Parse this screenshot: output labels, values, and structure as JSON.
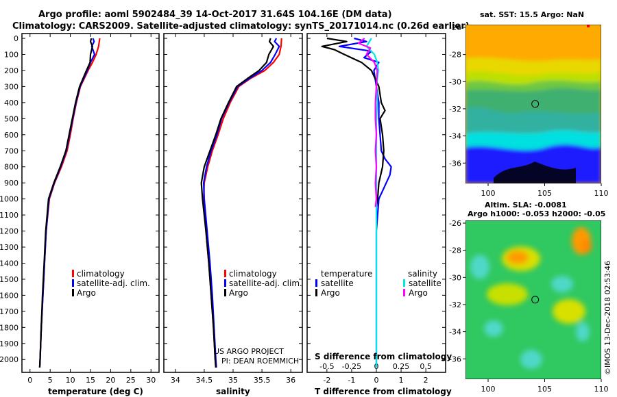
{
  "title_line1": "Argo profile: aoml 5902484_39 14-Oct-2017 31.64S 104.16E (DM data)",
  "title_line2": "Climatology: CARS2009. Satellite-adjusted climatology: synTS_20171014.nc (0.26d earlier)",
  "credit": "US ARGO PROJECT",
  "pi": "PI: DEAN ROEMMICH",
  "imos_stamp": "©IMOS 13-Dec-2018 02:53:46",
  "colors": {
    "climatology": "#ff0000",
    "satellite": "#0000ff",
    "argo": "#000000",
    "sal_satellite": "#00e5e5",
    "sal_argo": "#ff00ff"
  },
  "chart_data": [
    {
      "type": "line",
      "xlabel": "temperature (deg C)",
      "xlim": [
        -2,
        32
      ],
      "ylim": [
        2080,
        -30
      ],
      "xticks": [
        0,
        5,
        10,
        15,
        20,
        25,
        30
      ],
      "yticks": [
        0,
        100,
        200,
        300,
        400,
        500,
        600,
        700,
        800,
        900,
        1000,
        1100,
        1200,
        1300,
        1400,
        1500,
        1600,
        1700,
        1800,
        1900,
        2000
      ],
      "legend": [
        "climatology",
        "satellite-adj. clim.",
        "Argo"
      ],
      "series": [
        {
          "name": "climatology",
          "depth": [
            0,
            50,
            100,
            150,
            200,
            300,
            400,
            500,
            600,
            700,
            800,
            900,
            1000,
            1200,
            1400,
            1600,
            1800,
            2000,
            2050
          ],
          "values": [
            17.3,
            17.0,
            16.4,
            15.5,
            14.4,
            12.5,
            11.5,
            10.7,
            10.0,
            9.2,
            7.8,
            6.1,
            4.8,
            4.0,
            3.6,
            3.2,
            2.8,
            2.5,
            2.4
          ]
        },
        {
          "name": "satellite-adj. clim.",
          "depth": [
            0,
            20,
            50,
            100,
            150,
            200,
            300,
            400,
            500,
            600,
            700,
            800,
            900,
            1000,
            1200,
            1400,
            1600,
            1800,
            2000,
            2050
          ],
          "values": [
            15.6,
            15.9,
            15.3,
            16.0,
            15.0,
            14.2,
            12.4,
            11.4,
            10.6,
            9.8,
            9.0,
            7.6,
            6.0,
            4.7,
            4.0,
            3.6,
            3.2,
            2.8,
            2.5,
            2.4
          ]
        },
        {
          "name": "Argo",
          "depth": [
            0,
            20,
            50,
            100,
            150,
            200,
            300,
            400,
            500,
            600,
            700,
            800,
            900,
            1000,
            1200,
            1400,
            1600,
            1800,
            2000,
            2050
          ],
          "values": [
            15.2,
            15.0,
            15.5,
            15.0,
            14.9,
            14.0,
            12.3,
            11.3,
            10.5,
            9.7,
            8.9,
            7.5,
            5.9,
            4.6,
            3.9,
            3.5,
            3.1,
            2.8,
            2.5,
            2.4
          ]
        }
      ]
    },
    {
      "type": "line",
      "xlabel": "salinity",
      "xlim": [
        33.8,
        36.2
      ],
      "ylim": [
        2080,
        -30
      ],
      "xticks": [
        34,
        34.5,
        35,
        35.5,
        36
      ],
      "legend": [
        "climatology",
        "satellite-adj. clim.",
        "Argo"
      ],
      "series": [
        {
          "name": "climatology",
          "depth": [
            0,
            50,
            100,
            150,
            200,
            250,
            300,
            400,
            500,
            600,
            700,
            800,
            900,
            1000,
            1200,
            1400,
            1600,
            1800,
            2000,
            2050
          ],
          "values": [
            35.84,
            35.83,
            35.8,
            35.7,
            35.55,
            35.3,
            35.1,
            34.95,
            34.83,
            34.74,
            34.64,
            34.56,
            34.5,
            34.49,
            34.53,
            34.58,
            34.62,
            34.66,
            34.69,
            34.7
          ]
        },
        {
          "name": "satellite-adj. clim.",
          "depth": [
            0,
            20,
            50,
            100,
            150,
            200,
            250,
            300,
            400,
            500,
            600,
            700,
            800,
            900,
            1000,
            1200,
            1400,
            1600,
            1800,
            2000,
            2050
          ],
          "values": [
            35.75,
            35.72,
            35.8,
            35.73,
            35.65,
            35.5,
            35.28,
            35.08,
            34.93,
            34.8,
            34.72,
            34.62,
            34.54,
            34.49,
            34.5,
            34.55,
            34.6,
            34.64,
            34.67,
            34.7,
            34.71
          ]
        },
        {
          "name": "Argo",
          "depth": [
            0,
            20,
            50,
            100,
            150,
            200,
            250,
            300,
            400,
            500,
            600,
            700,
            800,
            900,
            1000,
            1200,
            1400,
            1600,
            1800,
            2000,
            2050
          ],
          "values": [
            35.65,
            35.63,
            35.7,
            35.62,
            35.58,
            35.45,
            35.25,
            35.06,
            34.92,
            34.79,
            34.7,
            34.6,
            34.5,
            34.45,
            34.47,
            34.53,
            34.58,
            34.62,
            34.66,
            34.69,
            34.7
          ]
        }
      ]
    },
    {
      "type": "line",
      "xlabel": "T difference from climatology",
      "top_label": "S difference from climatology",
      "xlim": [
        -2.8,
        2.8
      ],
      "ylim": [
        2080,
        -30
      ],
      "xticks": [
        -2,
        -1,
        0,
        1,
        2
      ],
      "top_ticks": [
        "-0.5",
        "-0.25",
        "0",
        "0.25",
        "0.5"
      ],
      "legend_left_title": "temperature",
      "legend_right_title": "salinity",
      "legend": [
        "satellite",
        "Argo",
        "satellite",
        "Argo"
      ],
      "series": [
        {
          "name": "T satellite",
          "depth": [
            0,
            20,
            50,
            80,
            120,
            150,
            200,
            300,
            400,
            500,
            600,
            700,
            750,
            800,
            850,
            900,
            950,
            1000,
            1100,
            1200,
            1400,
            1600,
            1800,
            2000,
            2050
          ],
          "values": [
            -0.9,
            -0.4,
            -1.5,
            -0.2,
            -0.5,
            0.1,
            -0.1,
            0.0,
            0.1,
            0.1,
            0.15,
            0.2,
            0.35,
            0.6,
            0.55,
            0.4,
            0.25,
            0.1,
            0.05,
            0.0,
            0.0,
            0.0,
            0.0,
            0.0,
            0.0
          ]
        },
        {
          "name": "T Argo",
          "depth": [
            0,
            20,
            50,
            70,
            100,
            150,
            200,
            300,
            400,
            450,
            500,
            600,
            700,
            800,
            900,
            1000,
            1050
          ],
          "values": [
            -2.0,
            -1.2,
            -2.2,
            -1.7,
            -1.3,
            -0.6,
            -0.2,
            0.1,
            0.2,
            0.35,
            0.15,
            0.25,
            0.3,
            0.25,
            0.1,
            0.05,
            0.0
          ]
        },
        {
          "name": "S satellite",
          "depth": [
            0,
            50,
            100,
            150,
            200,
            300,
            400,
            500,
            600,
            700,
            800,
            1000,
            1200,
            1400,
            1600,
            1800,
            2000,
            2050
          ],
          "values": [
            -0.05,
            -0.1,
            -0.02,
            0.01,
            0.02,
            0.0,
            0.01,
            0.0,
            0.0,
            0.0,
            0.0,
            0.0,
            0.0,
            0.0,
            0.0,
            0.0,
            0.0,
            0.0
          ]
        },
        {
          "name": "S Argo",
          "depth": [
            0,
            30,
            60,
            100,
            150,
            200,
            300,
            400,
            500,
            600,
            700,
            800,
            900,
            1000,
            1050
          ],
          "values": [
            -0.12,
            -0.18,
            -0.06,
            -0.1,
            -0.02,
            0.01,
            0.0,
            -0.01,
            -0.01,
            0.0,
            -0.01,
            0.0,
            -0.01,
            0.0,
            -0.01
          ]
        }
      ]
    },
    {
      "type": "heatmap",
      "title": "sat. SST: 15.5 Argo: NaN",
      "xlim": [
        98,
        110
      ],
      "ylim": [
        -37.5,
        -25.8
      ],
      "xticks": [
        100,
        105,
        110
      ],
      "yticks": [
        -26,
        -28,
        -30,
        -32,
        -34,
        -36
      ],
      "marker": {
        "lon": 104.16,
        "lat": -31.64
      }
    },
    {
      "type": "heatmap",
      "title": "Altim. SLA: -0.0081",
      "subtitle": "Argo h1000: -0.053 h2000: -0.05",
      "xlim": [
        98,
        110
      ],
      "ylim": [
        -37.5,
        -25.8
      ],
      "xticks": [
        100,
        105,
        110
      ],
      "yticks": [
        -26,
        -28,
        -30,
        -32,
        -34,
        -36
      ],
      "marker": {
        "lon": 104.16,
        "lat": -31.64
      }
    }
  ]
}
